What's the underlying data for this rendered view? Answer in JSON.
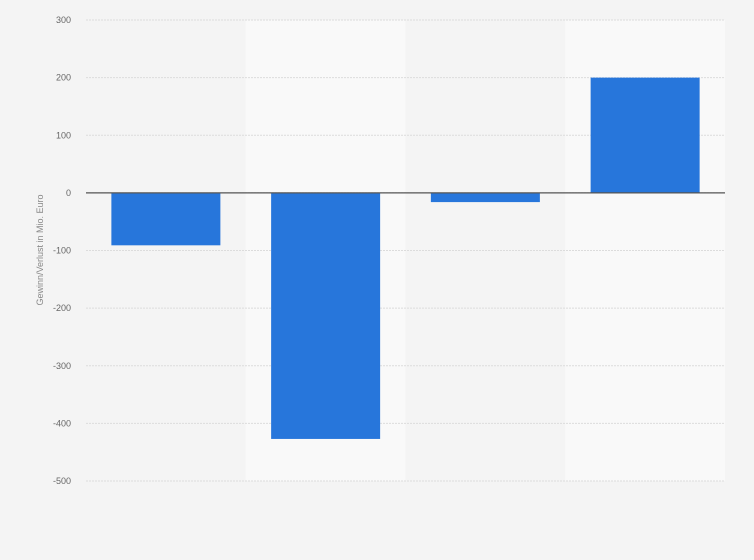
{
  "chart_data": {
    "type": "bar",
    "title": "",
    "xlabel": "",
    "ylabel": "Gewinn/Verlust in Mio. Euro",
    "categories": [
      "",
      "",
      "",
      ""
    ],
    "values": [
      -91,
      -427,
      -16,
      200
    ],
    "ylim": [
      -500,
      300
    ],
    "yticks": [
      300,
      200,
      100,
      0,
      -100,
      -200,
      -300,
      -400,
      -500
    ],
    "grid": true,
    "legend": "none",
    "bar_color": "#2776db",
    "zero_line_color": "#555555"
  }
}
